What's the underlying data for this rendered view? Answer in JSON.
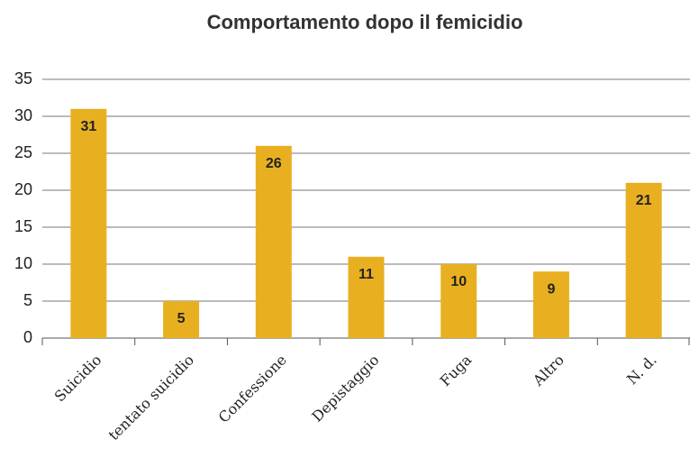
{
  "chart_data": {
    "type": "bar",
    "title": "Comportamento dopo il femicidio",
    "categories": [
      "Suicidio",
      "tentato suicidio",
      "Confessione",
      "Depistaggio",
      "Fuga",
      "Altro",
      "N. d."
    ],
    "values": [
      31,
      5,
      26,
      11,
      10,
      9,
      21
    ],
    "color": "#e8b020",
    "ylim": [
      0,
      35
    ],
    "yticks": [
      0,
      5,
      10,
      15,
      20,
      25,
      30,
      35
    ],
    "grid": true
  }
}
